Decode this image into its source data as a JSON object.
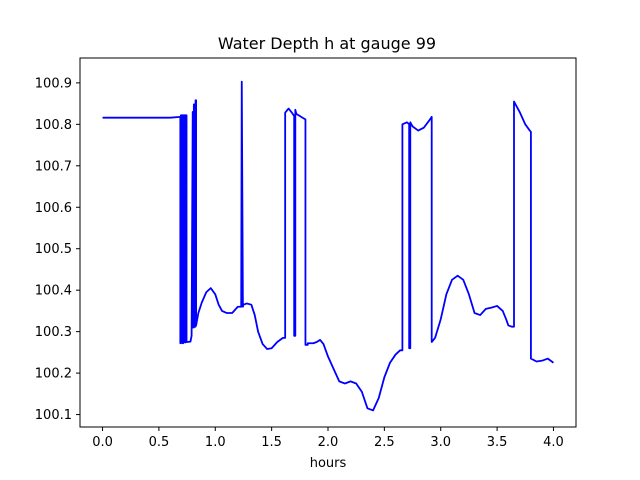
{
  "chart_data": {
    "type": "line",
    "title": "Water Depth h at gauge 99",
    "xlabel": "hours",
    "ylabel": "",
    "xlim": [
      -0.2,
      4.2
    ],
    "ylim": [
      100.07,
      100.96
    ],
    "grid": false,
    "legend": "none",
    "xticks": [
      0.0,
      0.5,
      1.0,
      1.5,
      2.0,
      2.5,
      3.0,
      3.5,
      4.0
    ],
    "xtick_labels": [
      "0.0",
      "0.5",
      "1.0",
      "1.5",
      "2.0",
      "2.5",
      "3.0",
      "3.5",
      "4.0"
    ],
    "yticks": [
      100.1,
      100.2,
      100.3,
      100.4,
      100.5,
      100.6,
      100.7,
      100.8,
      100.9
    ],
    "ytick_labels": [
      "100.1",
      "100.2",
      "100.3",
      "100.4",
      "100.5",
      "100.6",
      "100.7",
      "100.8",
      "100.9"
    ],
    "series": [
      {
        "color": "#0000ff",
        "x": [
          0.0,
          0.3,
          0.6,
          0.69,
          0.69,
          0.695,
          0.695,
          0.71,
          0.71,
          0.715,
          0.715,
          0.73,
          0.73,
          0.735,
          0.735,
          0.745,
          0.745,
          0.75,
          0.78,
          0.79,
          0.8,
          0.8,
          0.81,
          0.81,
          0.82,
          0.82,
          0.825,
          0.825,
          0.83,
          0.83,
          0.85,
          0.88,
          0.92,
          0.96,
          1.0,
          1.03,
          1.06,
          1.1,
          1.15,
          1.2,
          1.23,
          1.235,
          1.235,
          1.245,
          1.245,
          1.25,
          1.28,
          1.32,
          1.35,
          1.38,
          1.42,
          1.46,
          1.5,
          1.55,
          1.6,
          1.62,
          1.62,
          1.65,
          1.68,
          1.7,
          1.7,
          1.71,
          1.71,
          1.72,
          1.75,
          1.78,
          1.8,
          1.8,
          1.82,
          1.82,
          1.84,
          1.87,
          1.9,
          1.93,
          1.96,
          2.0,
          2.05,
          2.1,
          2.15,
          2.2,
          2.25,
          2.3,
          2.35,
          2.4,
          2.45,
          2.5,
          2.55,
          2.6,
          2.64,
          2.66,
          2.66,
          2.7,
          2.72,
          2.72,
          2.73,
          2.73,
          2.75,
          2.8,
          2.85,
          2.9,
          2.92,
          2.92,
          2.95,
          3.0,
          3.05,
          3.1,
          3.15,
          3.2,
          3.25,
          3.3,
          3.35,
          3.4,
          3.45,
          3.5,
          3.55,
          3.58,
          3.6,
          3.63,
          3.65,
          3.65,
          3.7,
          3.75,
          3.79,
          3.8,
          3.8,
          3.85,
          3.9,
          3.95,
          4.0
        ],
        "y": [
          100.816,
          100.816,
          100.816,
          100.818,
          100.272,
          100.272,
          100.822,
          100.822,
          100.272,
          100.272,
          100.822,
          100.822,
          100.274,
          100.274,
          100.822,
          100.822,
          100.275,
          100.275,
          100.276,
          100.29,
          100.83,
          100.31,
          100.31,
          100.848,
          100.848,
          100.312,
          100.312,
          100.858,
          100.858,
          100.315,
          100.345,
          100.37,
          100.395,
          100.405,
          100.39,
          100.365,
          100.35,
          100.345,
          100.345,
          100.36,
          100.36,
          100.903,
          100.903,
          100.36,
          100.36,
          100.365,
          100.368,
          100.365,
          100.34,
          100.3,
          100.27,
          100.258,
          100.26,
          100.275,
          100.285,
          100.285,
          100.828,
          100.838,
          100.828,
          100.82,
          100.29,
          100.29,
          100.835,
          100.825,
          100.82,
          100.815,
          100.812,
          100.268,
          100.268,
          100.272,
          100.272,
          100.272,
          100.275,
          100.28,
          100.27,
          100.24,
          100.21,
          100.18,
          100.175,
          100.18,
          100.175,
          100.155,
          100.115,
          100.11,
          100.14,
          100.19,
          100.225,
          100.245,
          100.255,
          100.255,
          100.8,
          100.805,
          100.8,
          100.26,
          100.26,
          100.805,
          100.795,
          100.785,
          100.792,
          100.81,
          100.818,
          100.275,
          100.285,
          100.33,
          100.39,
          100.425,
          100.435,
          100.425,
          100.39,
          100.345,
          100.34,
          100.355,
          100.358,
          100.362,
          100.35,
          100.33,
          100.315,
          100.312,
          100.312,
          100.855,
          100.83,
          100.8,
          100.785,
          100.782,
          100.235,
          100.228,
          100.23,
          100.235,
          100.225
        ]
      }
    ]
  }
}
